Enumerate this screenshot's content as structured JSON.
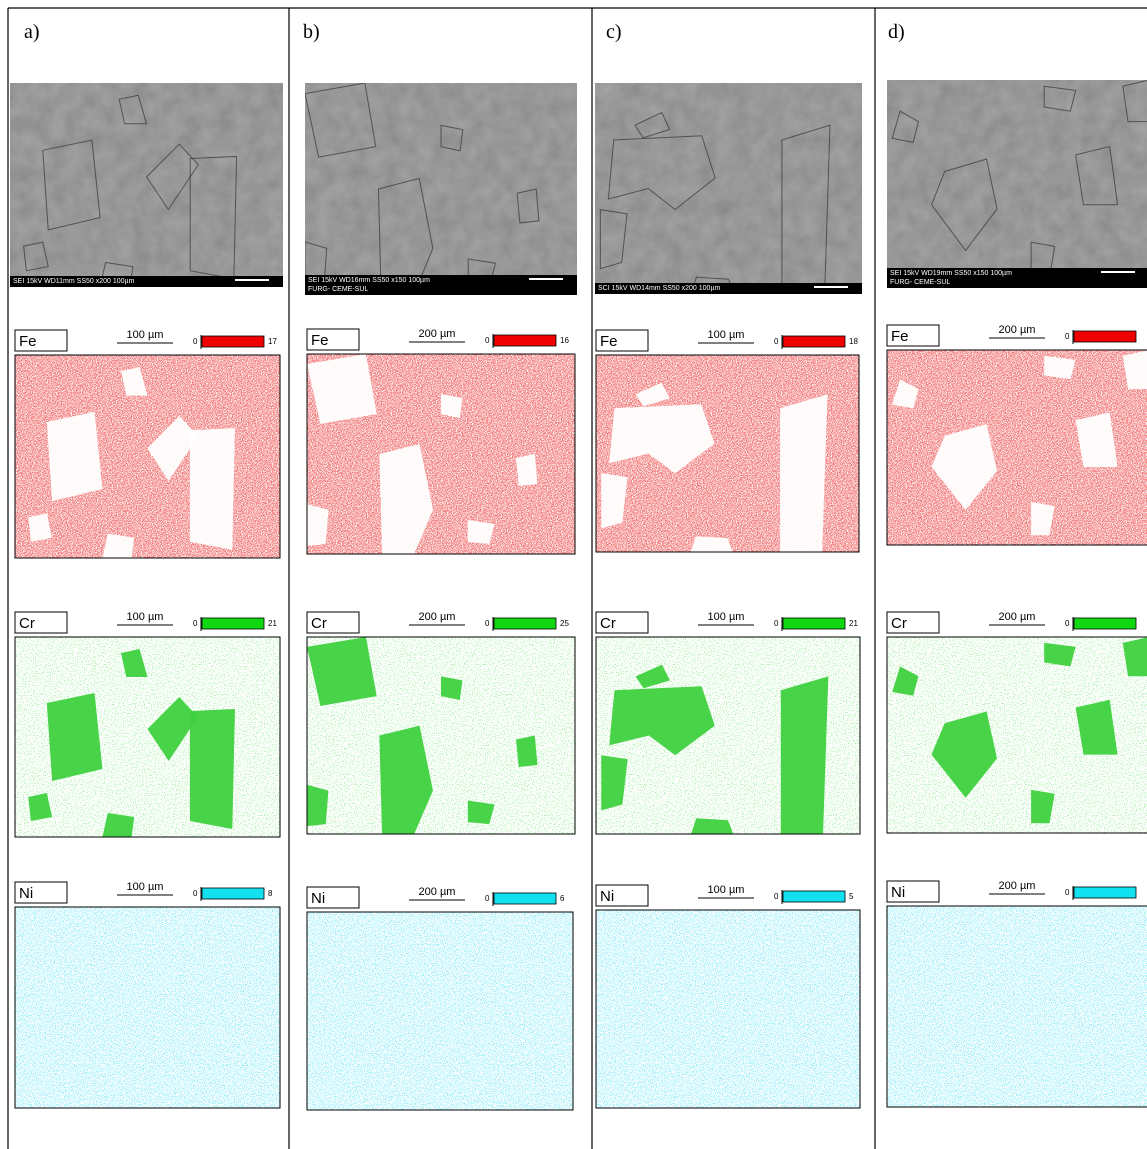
{
  "panels": [
    {
      "label": "a)",
      "sem_footer": [
        "SEI   15kV   WD11mm   SS50        x200    100µm"
      ],
      "maps": [
        {
          "element": "Fe",
          "scale": "100 µm",
          "min": "0",
          "max": "17"
        },
        {
          "element": "Cr",
          "scale": "100 µm",
          "min": "0",
          "max": "21"
        },
        {
          "element": "Ni",
          "scale": "100 µm",
          "min": "0",
          "max": "8"
        }
      ]
    },
    {
      "label": "b)",
      "sem_footer": [
        "SEI   15kV   WD16mm   SS50        x150    100µm",
        "FURG- CEME-SUL"
      ],
      "maps": [
        {
          "element": "Fe",
          "scale": "200 µm",
          "min": "0",
          "max": "16"
        },
        {
          "element": "Cr",
          "scale": "200 µm",
          "min": "0",
          "max": "25"
        },
        {
          "element": "Ni",
          "scale": "200 µm",
          "min": "0",
          "max": "6"
        }
      ]
    },
    {
      "label": "c)",
      "sem_footer": [
        "SCI   15kV   WD14mm   SS50        x200    100µm"
      ],
      "maps": [
        {
          "element": "Fe",
          "scale": "100 µm",
          "min": "0",
          "max": "18"
        },
        {
          "element": "Cr",
          "scale": "100 µm",
          "min": "0",
          "max": "21"
        },
        {
          "element": "Ni",
          "scale": "100 µm",
          "min": "0",
          "max": "5"
        }
      ]
    },
    {
      "label": "d)",
      "sem_footer": [
        "SEI   15kV   WD19mm   SS50        x150    100µm",
        "FURG- CEME-SUL"
      ],
      "maps": [
        {
          "element": "Fe",
          "scale": "200 µm",
          "min": "0"
        },
        {
          "element": "Cr",
          "scale": "200 µm",
          "min": "0"
        },
        {
          "element": "Ni",
          "scale": "200 µm",
          "min": "0"
        }
      ]
    }
  ]
}
